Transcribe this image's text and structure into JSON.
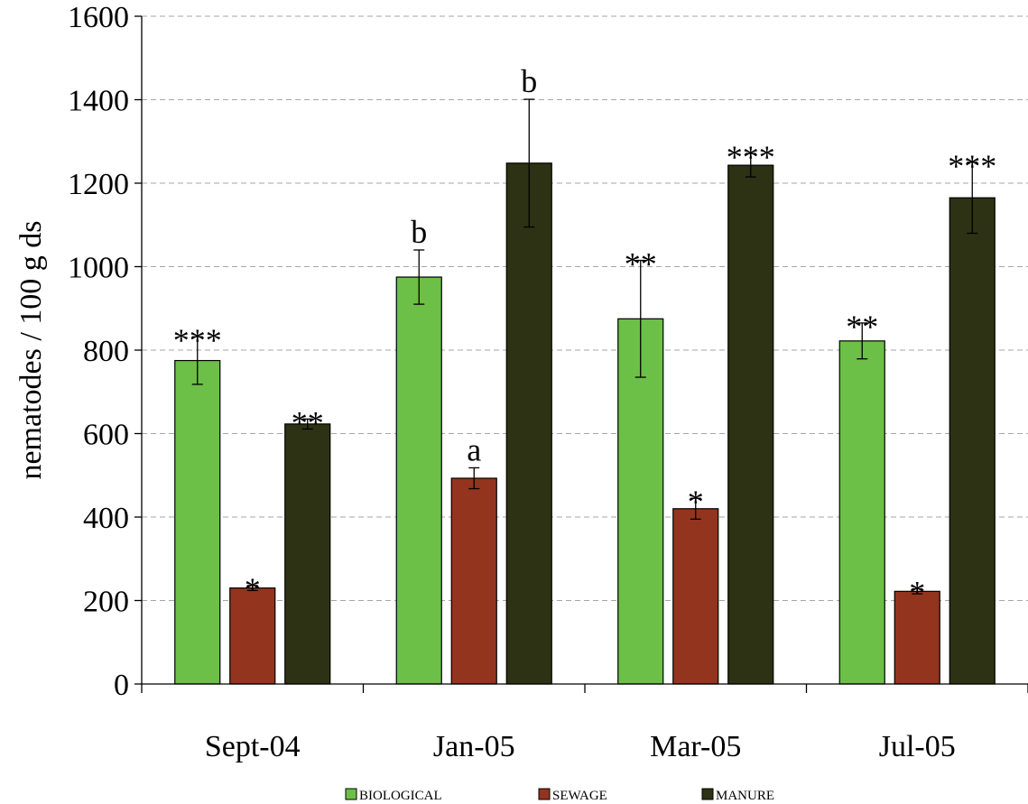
{
  "chart_data": {
    "type": "bar",
    "categories": [
      "Sept-04",
      "Jan-05",
      "Mar-05",
      "Jul-05"
    ],
    "ylabel": "nematodes / 100 g ds",
    "ylim": [
      0,
      1600
    ],
    "yticks": [
      0,
      200,
      400,
      600,
      800,
      1000,
      1200,
      1400,
      1600
    ],
    "grid": "horizontal dashed",
    "legend_position": "bottom",
    "series": [
      {
        "name": "BIOLOGICAL",
        "color": "#6cbf47",
        "values": [
          775,
          975,
          875,
          822
        ],
        "errors": [
          57,
          65,
          140,
          43
        ],
        "annotations": [
          "***",
          "b",
          "**",
          "**"
        ]
      },
      {
        "name": "SEWAGE",
        "color": "#93341f",
        "values": [
          230,
          493,
          420,
          222
        ],
        "errors": [
          6,
          25,
          25,
          6
        ],
        "annotations": [
          "*",
          "a",
          "*",
          "*"
        ]
      },
      {
        "name": "MANURE",
        "color": "#2e3214",
        "values": [
          623,
          1248,
          1243,
          1165
        ],
        "errors": [
          12,
          153,
          28,
          85
        ],
        "annotations": [
          "**",
          "b",
          "***",
          "***"
        ]
      }
    ]
  }
}
